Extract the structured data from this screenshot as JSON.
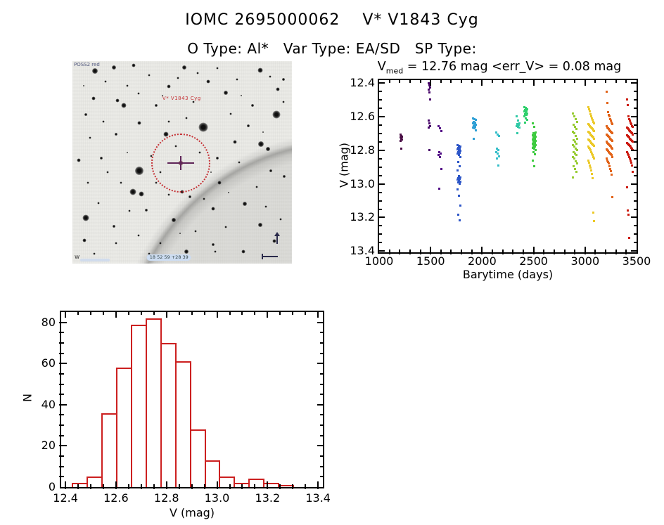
{
  "page": {
    "title": "IOMC 2695000062    V* V1843 Cyg",
    "subtitle": "O Type: Al*   Var Type: EA/SD   SP Type:"
  },
  "finder": {
    "survey_label": "POSS2 red",
    "target_label": "V* V1843 Cyg",
    "coord_label": "18 52 59 +28 39",
    "bottom_left_label": "W",
    "stars": [
      [
        10.3,
        5,
        8
      ],
      [
        19,
        3,
        6
      ],
      [
        28,
        2,
        5
      ],
      [
        44,
        12.5,
        5
      ],
      [
        51,
        3,
        6
      ],
      [
        62,
        10,
        5
      ],
      [
        70,
        15.5,
        6
      ],
      [
        85.5,
        4.5,
        7
      ],
      [
        96,
        9,
        4
      ],
      [
        93.5,
        14,
        5
      ],
      [
        93,
        26.5,
        11
      ],
      [
        86,
        41,
        8
      ],
      [
        89,
        43.5,
        6
      ],
      [
        80,
        32,
        4
      ],
      [
        74,
        40,
        5
      ],
      [
        59.5,
        32.5,
        13
      ],
      [
        42.5,
        36,
        7
      ],
      [
        30.5,
        30.5,
        5
      ],
      [
        23.5,
        22,
        7
      ],
      [
        20.5,
        19.5,
        5
      ],
      [
        9.5,
        18.5,
        5
      ],
      [
        6,
        26.5,
        4
      ],
      [
        3,
        49,
        5
      ],
      [
        13,
        48,
        4
      ],
      [
        30.5,
        54,
        12
      ],
      [
        27.5,
        64.5,
        9
      ],
      [
        31.5,
        65.5,
        7
      ],
      [
        50,
        64.5,
        5
      ],
      [
        53.5,
        67,
        4
      ],
      [
        67,
        60,
        5
      ],
      [
        64,
        73,
        5
      ],
      [
        78.5,
        70.5,
        6
      ],
      [
        85.5,
        81,
        6
      ],
      [
        6,
        77.5,
        9
      ],
      [
        5.5,
        88.5,
        5
      ],
      [
        19,
        81.5,
        4
      ],
      [
        46,
        78.5,
        6
      ],
      [
        33.5,
        73.5,
        4
      ],
      [
        52,
        94,
        6
      ],
      [
        64,
        90.5,
        4
      ],
      [
        78,
        94,
        5
      ],
      [
        92,
        89,
        5
      ],
      [
        96.5,
        57,
        4
      ],
      [
        90.5,
        54,
        4
      ],
      [
        15,
        10,
        3
      ],
      [
        25,
        12,
        3
      ],
      [
        35,
        7,
        3
      ],
      [
        48,
        8.5,
        3
      ],
      [
        57,
        6,
        3
      ],
      [
        66,
        3.5,
        3
      ],
      [
        75,
        9,
        3
      ],
      [
        90,
        7.5,
        3
      ],
      [
        96,
        20,
        3
      ],
      [
        82,
        22,
        4
      ],
      [
        72,
        26,
        3
      ],
      [
        55,
        20,
        3
      ],
      [
        38,
        22,
        4
      ],
      [
        30,
        16,
        3
      ],
      [
        14,
        30,
        3
      ],
      [
        20,
        36,
        4
      ],
      [
        8,
        38,
        3
      ],
      [
        16,
        55,
        3
      ],
      [
        7,
        60,
        3
      ],
      [
        22,
        60,
        3
      ],
      [
        36,
        47,
        3
      ],
      [
        40,
        55,
        3
      ],
      [
        58,
        45,
        3
      ],
      [
        66,
        48,
        4
      ],
      [
        76,
        50,
        3
      ],
      [
        84,
        62,
        3
      ],
      [
        60,
        68,
        3
      ],
      [
        44,
        66,
        3
      ],
      [
        38,
        60,
        3
      ],
      [
        26,
        74,
        3
      ],
      [
        12,
        70,
        3
      ],
      [
        20,
        90,
        3
      ],
      [
        30,
        86,
        3
      ],
      [
        40,
        90,
        3
      ],
      [
        56,
        84,
        3
      ],
      [
        70,
        82,
        3
      ],
      [
        88,
        72,
        3
      ],
      [
        95,
        78,
        3
      ],
      [
        65,
        94,
        3
      ],
      [
        35,
        95,
        3
      ],
      [
        10,
        95,
        3
      ],
      [
        47,
        42,
        3
      ],
      [
        52,
        28,
        3
      ],
      [
        44,
        30,
        3
      ],
      [
        25,
        45,
        2
      ],
      [
        63,
        55,
        2
      ],
      [
        71,
        65,
        2
      ],
      [
        49,
        85,
        2
      ],
      [
        87,
        35,
        2
      ],
      [
        5,
        12,
        2
      ],
      [
        41,
        17,
        2
      ],
      [
        77,
        17,
        2
      ]
    ]
  },
  "chart_data": [
    {
      "type": "scatter",
      "title_prefix": "V",
      "title_sub": "med",
      "title_rest": " = 12.76 mag <err_V> = 0.08 mag",
      "v_med_mag": 12.76,
      "err_v_mag": 0.08,
      "xlabel": "Barytime (days)",
      "ylabel": "V (mag)",
      "xlim": [
        1000,
        3500
      ],
      "y_top": 12.383,
      "y_bottom": 13.407,
      "x_ticks": [
        1000,
        1500,
        2000,
        2500,
        3000,
        3500
      ],
      "x_tick_labels": [
        "1000",
        "1500",
        "2000",
        "2500",
        "3000",
        "3500"
      ],
      "x_minor": 100,
      "y_ticks": [
        12.4,
        12.6,
        12.8,
        13.0,
        13.2,
        13.4
      ],
      "y_tick_labels": [
        "12.4",
        "12.6",
        "12.8",
        "13.0",
        "13.2",
        "13.4"
      ],
      "y_minor": 0.05,
      "series": [
        {
          "day": 1218,
          "color": "#4a0e46",
          "spread": 1,
          "mags": [
            12.705,
            12.715,
            12.72,
            12.725,
            12.73,
            12.735,
            12.745,
            12.79
          ]
        },
        {
          "day": 1490,
          "color": "#49076b",
          "spread": 1,
          "mags": [
            12.4,
            12.415,
            12.425,
            12.44,
            12.455,
            12.5,
            12.625,
            12.64,
            12.655,
            12.665,
            12.8
          ]
        },
        {
          "day": 1588,
          "color": "#541287",
          "spread": 2,
          "mags": [
            12.655,
            12.67,
            12.685,
            12.81,
            12.82,
            12.83,
            12.84,
            12.91,
            13.03
          ]
        },
        {
          "day": 1772,
          "color": "#2d56c8",
          "spread": 2,
          "mags": [
            12.77,
            12.775,
            12.78,
            12.785,
            12.79,
            12.795,
            12.8,
            12.805,
            12.81,
            12.815,
            12.82,
            12.83,
            12.84,
            12.87,
            12.895,
            12.92,
            12.955,
            12.96,
            12.965,
            12.97,
            12.975,
            12.98,
            12.985,
            12.99,
            13.0,
            13.035,
            13.07,
            13.13,
            13.185,
            13.215
          ]
        },
        {
          "day": 1928,
          "color": "#2fa0d6",
          "spread": 2,
          "mags": [
            12.61,
            12.615,
            12.62,
            12.63,
            12.635,
            12.64,
            12.645,
            12.65,
            12.655,
            12.66,
            12.665,
            12.67,
            12.68,
            12.73
          ]
        },
        {
          "day": 2150,
          "color": "#36bec9",
          "spread": 2,
          "mags": [
            12.695,
            12.705,
            12.715,
            12.79,
            12.8,
            12.81,
            12.82,
            12.835,
            12.85,
            12.89
          ]
        },
        {
          "day": 2352,
          "color": "#30c9a6",
          "spread": 2,
          "mags": [
            12.6,
            12.625,
            12.64,
            12.645,
            12.65,
            12.655,
            12.66,
            12.665,
            12.7
          ]
        },
        {
          "day": 2422,
          "color": "#2fd06c",
          "spread": 2,
          "mags": [
            12.545,
            12.55,
            12.555,
            12.56,
            12.565,
            12.57,
            12.575,
            12.58,
            12.585,
            12.59,
            12.6,
            12.61,
            12.62,
            12.635
          ]
        },
        {
          "day": 2508,
          "color": "#3ecb40",
          "spread": 2,
          "mags": [
            12.64,
            12.66,
            12.695,
            12.7,
            12.705,
            12.71,
            12.715,
            12.72,
            12.725,
            12.73,
            12.735,
            12.74,
            12.745,
            12.75,
            12.755,
            12.76,
            12.765,
            12.77,
            12.775,
            12.78,
            12.785,
            12.79,
            12.8,
            12.81,
            12.825,
            12.86,
            12.895
          ]
        },
        {
          "day": 2900,
          "color": "#97cb32",
          "spread": 3,
          "mags": [
            12.58,
            12.6,
            12.615,
            12.63,
            12.65,
            12.66,
            12.675,
            12.69,
            12.7,
            12.715,
            12.73,
            12.74,
            12.75,
            12.76,
            12.77,
            12.78,
            12.79,
            12.8,
            12.81,
            12.82,
            12.83,
            12.84,
            12.85,
            12.865,
            12.88,
            12.895,
            12.91,
            12.93,
            12.96
          ]
        },
        {
          "day": 3062,
          "color": "#ecc929",
          "spread": 4,
          "mags": [
            12.545,
            12.555,
            12.57,
            12.585,
            12.6,
            12.61,
            12.62,
            12.63,
            12.64,
            12.645,
            12.65,
            12.655,
            12.66,
            12.665,
            12.67,
            12.675,
            12.68,
            12.685,
            12.69,
            12.695,
            12.7,
            12.705,
            12.71,
            12.715,
            12.72,
            12.725,
            12.73,
            12.735,
            12.74,
            12.745,
            12.75,
            12.755,
            12.76,
            12.765,
            12.77,
            12.775,
            12.78,
            12.785,
            12.79,
            12.8,
            12.81,
            12.82,
            12.83,
            12.84,
            12.85,
            12.86,
            12.875,
            12.89,
            12.905,
            12.92,
            12.94,
            12.965,
            13.17,
            13.22
          ]
        },
        {
          "day": 3238,
          "color": "#e2641a",
          "spread": 4,
          "mags": [
            12.45,
            12.52,
            12.575,
            12.59,
            12.6,
            12.615,
            12.625,
            12.635,
            12.645,
            12.655,
            12.665,
            12.67,
            12.675,
            12.68,
            12.685,
            12.69,
            12.695,
            12.7,
            12.705,
            12.71,
            12.715,
            12.72,
            12.725,
            12.73,
            12.735,
            12.74,
            12.745,
            12.75,
            12.755,
            12.76,
            12.765,
            12.77,
            12.775,
            12.78,
            12.785,
            12.79,
            12.795,
            12.8,
            12.805,
            12.81,
            12.815,
            12.82,
            12.825,
            12.83,
            12.84,
            12.85,
            12.86,
            12.87,
            12.88,
            12.895,
            12.91,
            12.925,
            12.945,
            13.08
          ]
        },
        {
          "day": 3432,
          "color": "#cc1d12",
          "spread": 4,
          "mags": [
            12.5,
            12.53,
            12.6,
            12.615,
            12.625,
            12.635,
            12.645,
            12.655,
            12.66,
            12.665,
            12.67,
            12.675,
            12.68,
            12.685,
            12.69,
            12.695,
            12.7,
            12.705,
            12.71,
            12.715,
            12.72,
            12.725,
            12.73,
            12.735,
            12.74,
            12.745,
            12.75,
            12.755,
            12.76,
            12.765,
            12.77,
            12.775,
            12.78,
            12.785,
            12.79,
            12.8,
            12.81,
            12.82,
            12.83,
            12.84,
            12.85,
            12.86,
            12.875,
            12.89,
            12.93,
            13.02,
            13.16,
            13.185,
            13.32
          ]
        }
      ]
    },
    {
      "type": "bar",
      "xlabel": "V (mag)",
      "ylabel": "N",
      "color": "#cc2020",
      "xlim": [
        12.383,
        13.419
      ],
      "ylim": [
        0,
        85
      ],
      "x_ticks": [
        12.4,
        12.6,
        12.8,
        13.0,
        13.2,
        13.4
      ],
      "x_tick_labels": [
        "12.4",
        "12.6",
        "12.8",
        "13.0",
        "13.2",
        "13.4"
      ],
      "x_minor": 0.05,
      "y_ticks": [
        0,
        20,
        40,
        60,
        80
      ],
      "y_tick_labels": [
        "0",
        "20",
        "40",
        "60",
        "80"
      ],
      "y_minor": 5,
      "bin_start": 12.428,
      "bin_width": 0.0583,
      "counts": [
        2,
        5,
        36,
        58,
        79,
        82,
        70,
        61,
        28,
        13,
        5,
        2,
        4,
        2,
        1
      ]
    }
  ]
}
